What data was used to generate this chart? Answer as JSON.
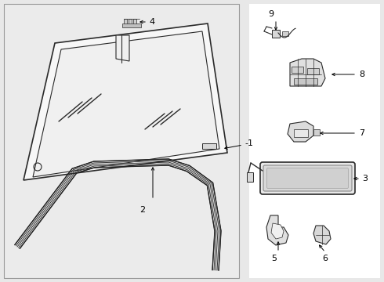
{
  "bg_color": "#e8e8e8",
  "panel_color": "#ffffff",
  "line_color": "#2a2a2a",
  "label_color": "#000000",
  "fig_width": 4.9,
  "fig_height": 3.6,
  "dpi": 100
}
